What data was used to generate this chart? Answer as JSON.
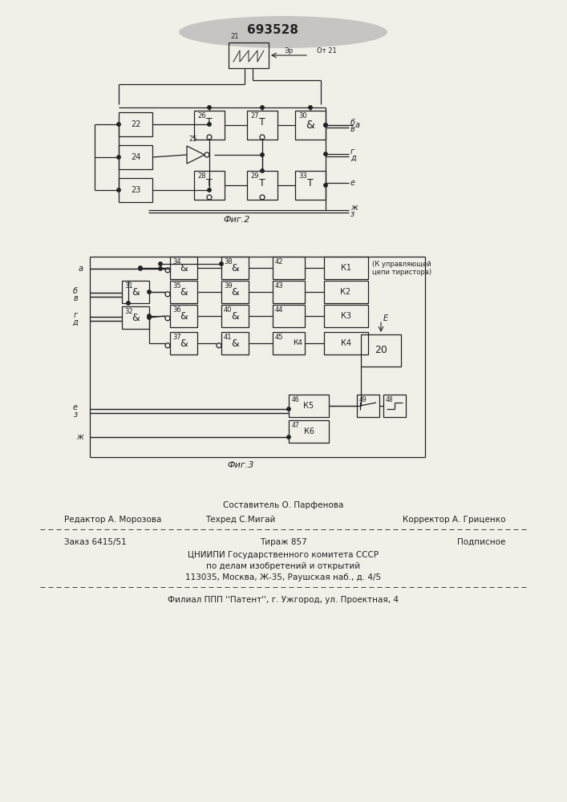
{
  "bg_color": "#f2efe9",
  "line_color": "#222222",
  "patent_number": "693528",
  "fig2_label": "Фиг.2",
  "fig3_label": "Фиг.3",
  "footer_line1": "Составитель О. Парфенова",
  "footer_line2_left": "Редактор А. Морозова",
  "footer_line2_mid": "Техред С.Мигай",
  "footer_line2_right": "Корректор А. Гриценко",
  "footer_line3_left": "Заказ 6415/51",
  "footer_line3_mid": "Тираж 857",
  "footer_line3_right": "Подписное",
  "footer_line4": "ЦНИИПИ Государственного комитета СССР",
  "footer_line5": "по делам изобретений и открытий",
  "footer_line6": "113035, Москва, Ж-35, Раушская наб., д. 4/5",
  "footer_line7": "Филиал ППП ''Патент'', г. Ужгород, ул. Проектная, 4"
}
